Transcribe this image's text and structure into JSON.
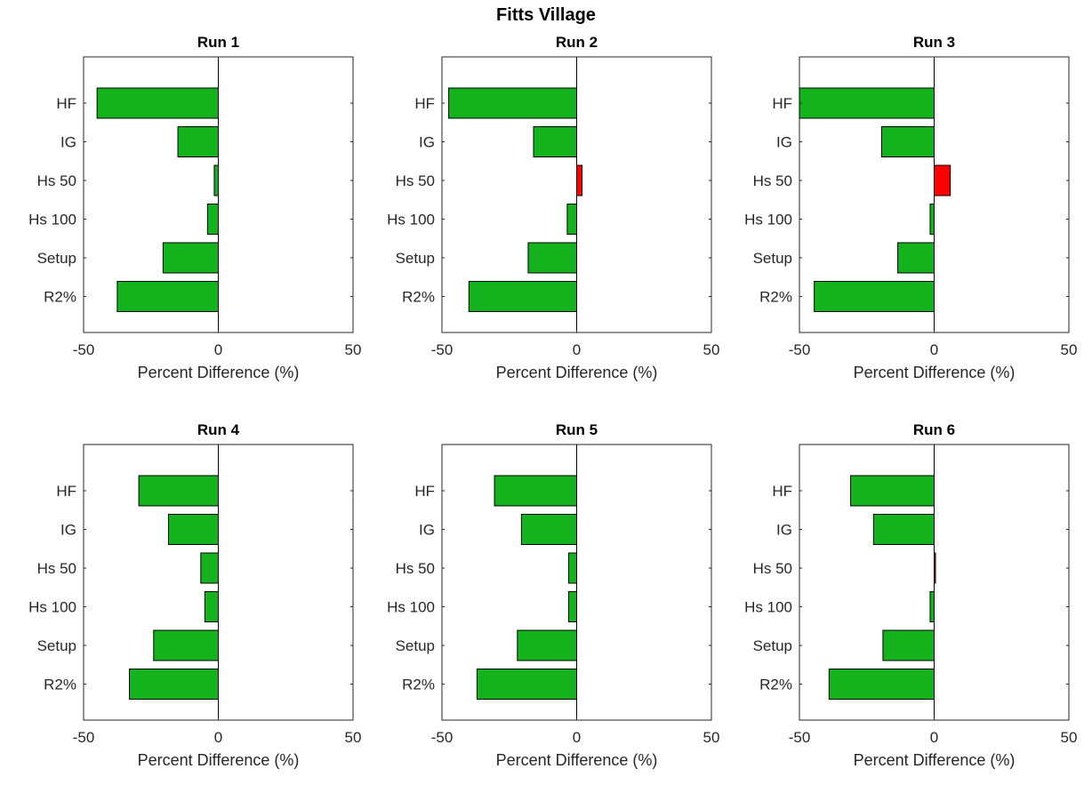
{
  "figure": {
    "title": "Fitts Village"
  },
  "colors": {
    "negative": "#14b21c",
    "positive": "#ff0000",
    "edge": "#000000"
  },
  "chart_data": [
    {
      "type": "bar",
      "orientation": "horizontal",
      "title": "Run 1",
      "categories": [
        "HF",
        "IG",
        "Hs 50",
        "Hs 100",
        "Setup",
        "R2%"
      ],
      "values": [
        -45,
        -15,
        -1.5,
        -4,
        -20.5,
        -37.5
      ],
      "xlabel": "Percent Difference (%)",
      "xlim": [
        -50,
        50
      ],
      "xticks": [
        -50,
        0,
        50
      ]
    },
    {
      "type": "bar",
      "orientation": "horizontal",
      "title": "Run 2",
      "categories": [
        "HF",
        "IG",
        "Hs 50",
        "Hs 100",
        "Setup",
        "R2%"
      ],
      "values": [
        -47.5,
        -16,
        2,
        -3.5,
        -18,
        -40
      ],
      "xlabel": "Percent Difference (%)",
      "xlim": [
        -50,
        50
      ],
      "xticks": [
        -50,
        0,
        50
      ]
    },
    {
      "type": "bar",
      "orientation": "horizontal",
      "title": "Run 3",
      "categories": [
        "HF",
        "IG",
        "Hs 50",
        "Hs 100",
        "Setup",
        "R2%"
      ],
      "values": [
        -50,
        -19.5,
        6,
        -1.5,
        -13.5,
        -44.5
      ],
      "xlabel": "Percent Difference (%)",
      "xlim": [
        -50,
        50
      ],
      "xticks": [
        -50,
        0,
        50
      ]
    },
    {
      "type": "bar",
      "orientation": "horizontal",
      "title": "Run 4",
      "categories": [
        "HF",
        "IG",
        "Hs 50",
        "Hs 100",
        "Setup",
        "R2%"
      ],
      "values": [
        -29.5,
        -18.5,
        -6.5,
        -5,
        -24,
        -33
      ],
      "xlabel": "Percent Difference (%)",
      "xlim": [
        -50,
        50
      ],
      "xticks": [
        -50,
        0,
        50
      ]
    },
    {
      "type": "bar",
      "orientation": "horizontal",
      "title": "Run 5",
      "categories": [
        "HF",
        "IG",
        "Hs 50",
        "Hs 100",
        "Setup",
        "R2%"
      ],
      "values": [
        -30.5,
        -20.5,
        -3,
        -3,
        -22,
        -37
      ],
      "xlabel": "Percent Difference (%)",
      "xlim": [
        -50,
        50
      ],
      "xticks": [
        -50,
        0,
        50
      ]
    },
    {
      "type": "bar",
      "orientation": "horizontal",
      "title": "Run 6",
      "categories": [
        "HF",
        "IG",
        "Hs 50",
        "Hs 100",
        "Setup",
        "R2%"
      ],
      "values": [
        -31,
        -22.5,
        0.5,
        -1.5,
        -19,
        -39
      ],
      "xlabel": "Percent Difference (%)",
      "xlim": [
        -50,
        50
      ],
      "xticks": [
        -50,
        0,
        50
      ]
    }
  ]
}
